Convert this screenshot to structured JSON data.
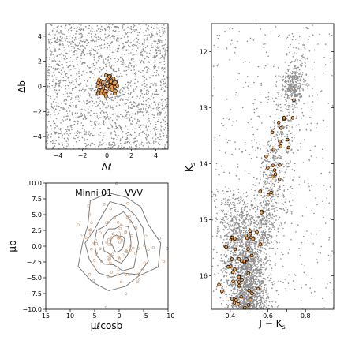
{
  "chart_data": [
    {
      "type": "scatter",
      "xlabel": "Δℓ",
      "ylabel": "Δb",
      "xlim": [
        -5,
        5
      ],
      "ylim": [
        -5,
        5
      ],
      "x_ticks": [
        -4,
        -2,
        0,
        2,
        4
      ],
      "y_ticks": [
        -4,
        -2,
        0,
        2,
        4
      ],
      "x_tick_labels": [
        "−4",
        "−2",
        "0",
        "2",
        "4"
      ],
      "y_tick_labels": [
        "−4",
        "−2",
        "0",
        "2",
        "4"
      ],
      "field_color": "#8c8c8c",
      "member_color": "#f0a050",
      "member_edge": "#000000",
      "cluster_center": [
        0,
        0
      ],
      "cluster_radius": 0.9,
      "grid": false
    },
    {
      "type": "scatter",
      "title": "Minni 01  −  VVV",
      "xlabel": "μℓcosb",
      "ylabel": "μb",
      "xlim": [
        15,
        -10
      ],
      "ylim": [
        -10,
        10
      ],
      "x_ticks": [
        15,
        10,
        5,
        0,
        -5,
        -10
      ],
      "x_tick_labels": [
        "15",
        "10",
        "5",
        "0",
        "−5",
        "−10"
      ],
      "y_ticks": [
        -10,
        -7.5,
        -5,
        -2.5,
        0,
        2.5,
        5,
        7.5,
        10
      ],
      "y_tick_labels": [
        "−10.0",
        "−7.5",
        "−5.0",
        "−2.5",
        "0.0",
        "2.5",
        "5.0",
        "7.5",
        "10.0"
      ],
      "contour_center": [
        0.3,
        0.5
      ],
      "contour_radii": [
        1.3,
        2.8,
        4.3,
        5.8,
        7.6
      ],
      "contour_color": "#6e6e6e",
      "point_color": "#c8a890",
      "grid": false
    },
    {
      "type": "scatter",
      "xlabel": "J − K",
      "xlabel_sub": "s",
      "ylabel": "K",
      "ylabel_sub": "s",
      "xlim": [
        0.3,
        0.95
      ],
      "ylim": [
        16.6,
        11.5
      ],
      "x_ticks": [
        0.4,
        0.5,
        0.6,
        0.7,
        0.8
      ],
      "x_tick_labels": [
        "0.4",
        "",
        "0.6",
        "",
        "0.8"
      ],
      "y_ticks": [
        12,
        13,
        14,
        15,
        16
      ],
      "y_tick_labels": [
        "12",
        "13",
        "14",
        "15",
        "16"
      ],
      "field_color": "#8c8c8c",
      "member_color": "#f0a050",
      "member_edge": "#000000",
      "grid": false
    }
  ]
}
